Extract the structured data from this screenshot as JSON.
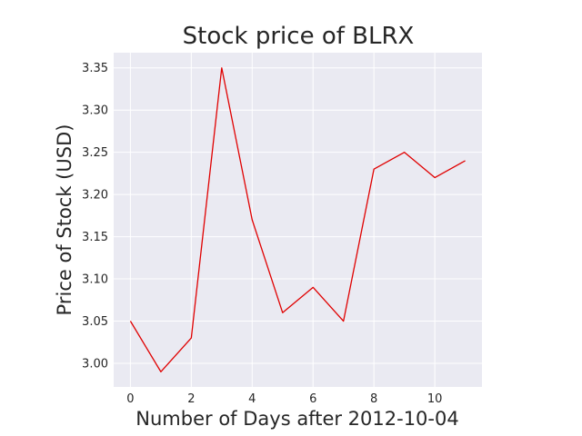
{
  "chart_data": {
    "type": "line",
    "title": "Stock price of BLRX",
    "xlabel": "Number of Days after 2012-10-04",
    "ylabel": "Price of Stock (USD)",
    "x": [
      0,
      1,
      2,
      3,
      4,
      5,
      6,
      7,
      8,
      9,
      10,
      11
    ],
    "series": [
      {
        "values": [
          3.05,
          2.99,
          3.03,
          3.35,
          3.17,
          3.06,
          3.09,
          3.05,
          3.23,
          3.25,
          3.22,
          3.24
        ]
      }
    ],
    "xlim": [
      -0.55,
      11.55
    ],
    "ylim": [
      2.972,
      3.368
    ],
    "xticks": [
      0,
      2,
      4,
      6,
      8,
      10
    ],
    "yticks": [
      3.0,
      3.05,
      3.1,
      3.15,
      3.2,
      3.25,
      3.3,
      3.35
    ],
    "xtick_labels": [
      "0",
      "2",
      "4",
      "6",
      "8",
      "10"
    ],
    "ytick_labels": [
      "3.00",
      "3.05",
      "3.10",
      "3.15",
      "3.20",
      "3.25",
      "3.30",
      "3.35"
    ],
    "grid": true,
    "line_color": "#e00000",
    "background_color": "#eaeaf2",
    "grid_color": "#ffffff"
  }
}
